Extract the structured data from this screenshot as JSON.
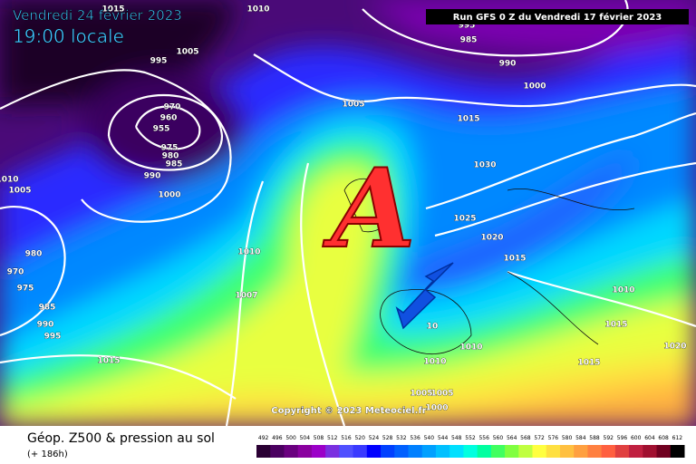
{
  "header": {
    "date": "Vendredi 24 février 2023",
    "time": "19:00 locale",
    "run": "Run GFS 0 Z du Vendredi 17 février 2023"
  },
  "map": {
    "highlight": "A",
    "copyright": "Copyright © 2023 Meteociel.fr",
    "isobars": [
      1010,
      1015,
      995,
      985,
      990,
      1005,
      995,
      970,
      960,
      955,
      975,
      980,
      985,
      990,
      1000,
      1005,
      1015,
      1030,
      1000,
      1010,
      1005,
      1025,
      1020,
      1015,
      980,
      970,
      975,
      985,
      990,
      995,
      1010,
      1007,
      1015,
      1010,
      1015,
      1020,
      1015,
      10,
      1010,
      1010,
      1005,
      1005,
      1000
    ]
  },
  "footer": {
    "title": "Géop. Z500 & pression au sol",
    "lead": "(+ 186h)"
  },
  "legend": {
    "values": [
      492,
      496,
      500,
      504,
      508,
      512,
      516,
      520,
      524,
      528,
      532,
      536,
      540,
      544,
      548,
      552,
      556,
      560,
      564,
      568,
      572,
      576,
      580,
      584,
      588,
      592,
      596,
      600,
      604,
      608,
      612
    ],
    "colors": [
      "#2a0033",
      "#4b0060",
      "#6a007f",
      "#8a009f",
      "#9b00c8",
      "#7a30e0",
      "#5050ff",
      "#3a3aff",
      "#0000ff",
      "#0040ff",
      "#0060ff",
      "#0080ff",
      "#00a0ff",
      "#00c0ff",
      "#00e0ff",
      "#00ffe0",
      "#00ffa0",
      "#40ff60",
      "#80ff40",
      "#c0ff40",
      "#ffff40",
      "#ffe040",
      "#ffc040",
      "#ffa040",
      "#ff8040",
      "#ff6040",
      "#e04040",
      "#c02040",
      "#a01030",
      "#700020",
      "#000000"
    ]
  }
}
